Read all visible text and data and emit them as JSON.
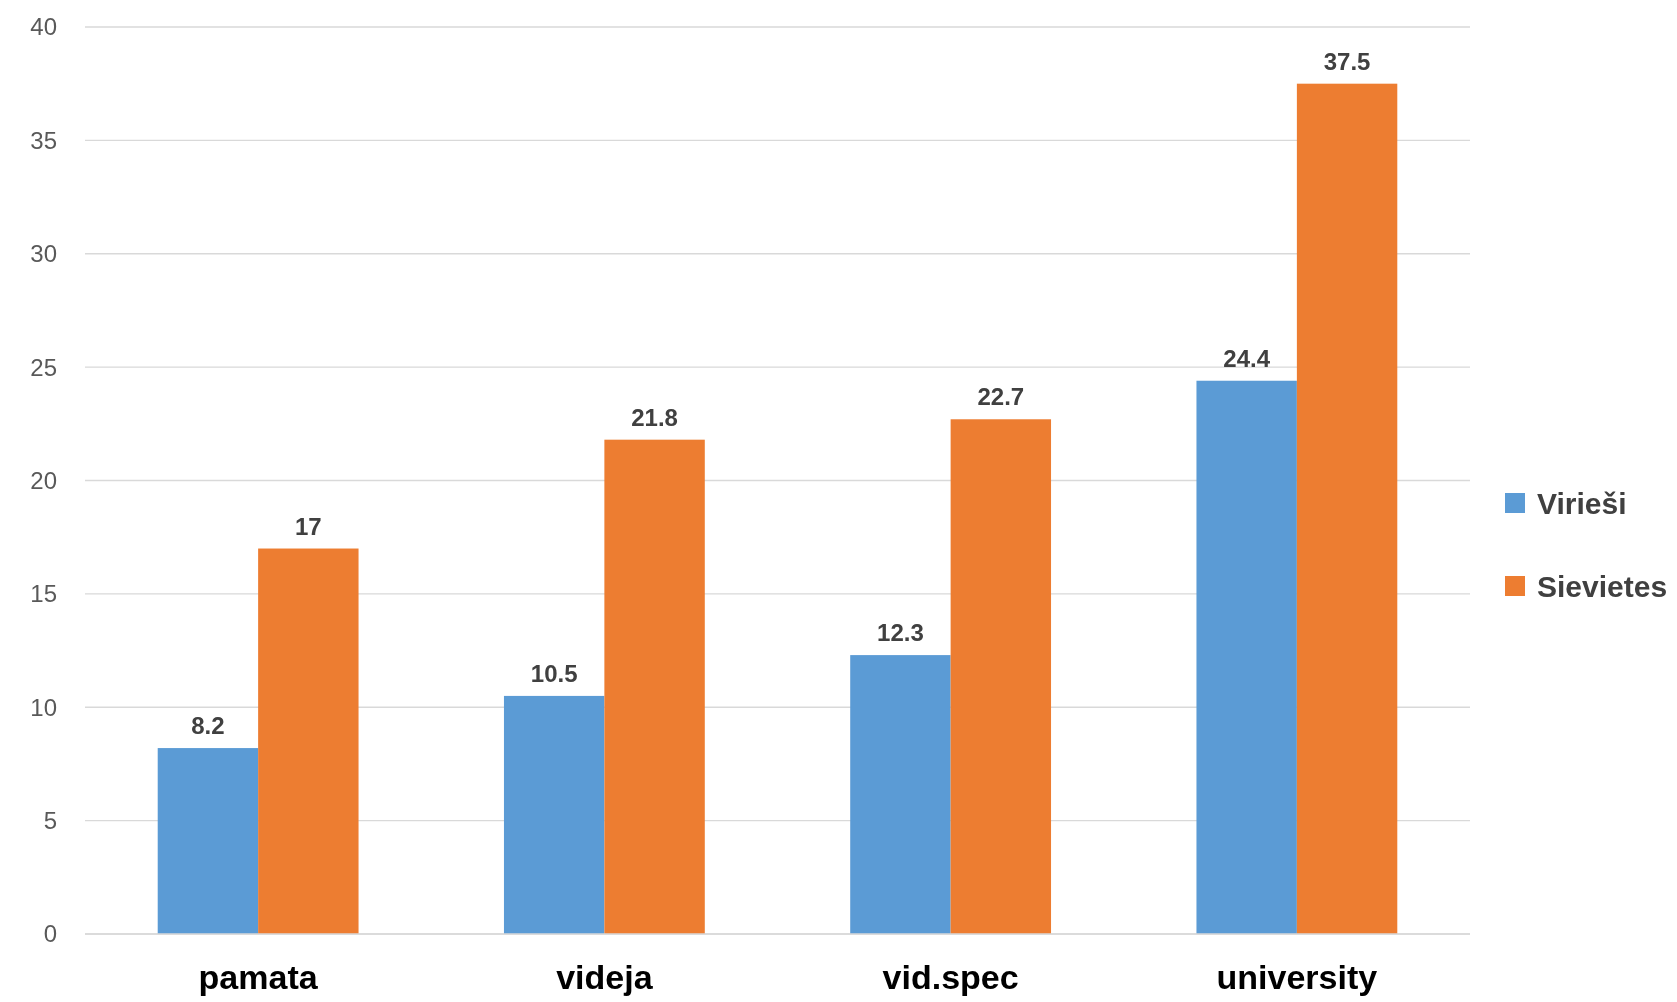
{
  "chart_data": {
    "type": "bar",
    "categories": [
      "pamata",
      "videja",
      "vid.spec",
      "university"
    ],
    "series": [
      {
        "name": "Virieši",
        "color": "#5b9bd5",
        "values": [
          8.2,
          10.5,
          12.3,
          24.4
        ]
      },
      {
        "name": "Sievietes",
        "color": "#ed7d31",
        "values": [
          17,
          21.8,
          22.7,
          37.5
        ]
      }
    ],
    "ylim": [
      0,
      40
    ],
    "yticks": [
      0,
      5,
      10,
      15,
      20,
      25,
      30,
      35,
      40
    ],
    "grid": "y",
    "legend": "right",
    "data_labels": true
  }
}
